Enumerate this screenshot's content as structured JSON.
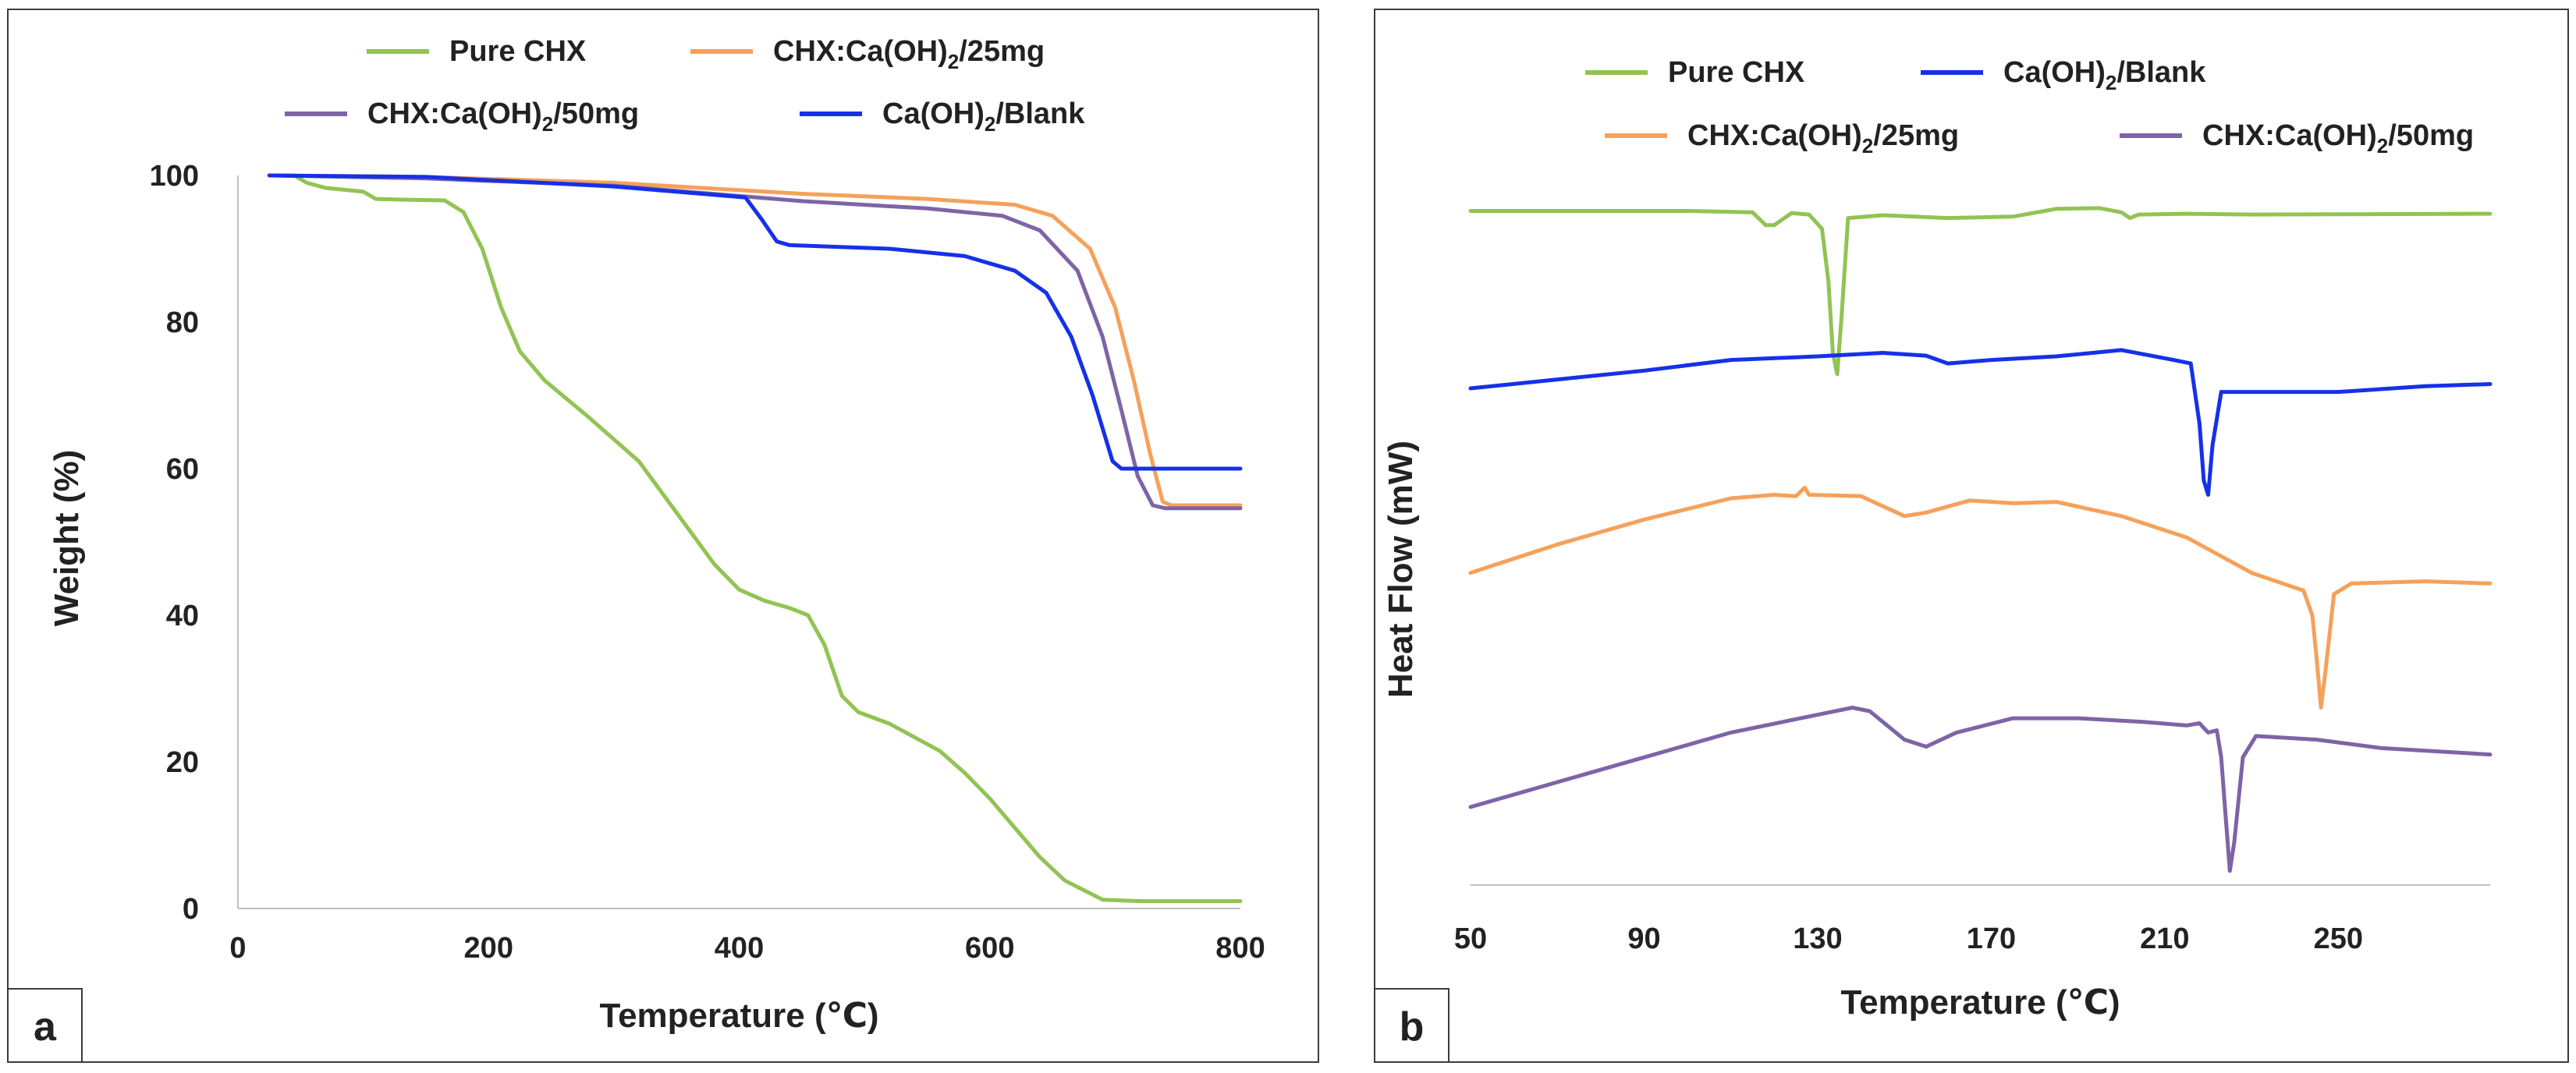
{
  "chart_data": [
    {
      "type": "line",
      "panel_label": "a",
      "title": "",
      "xlabel": "Temperature (℃)",
      "ylabel": "Weight (%)",
      "xlim": [
        0,
        800
      ],
      "ylim": [
        0,
        100
      ],
      "x_ticks": [
        0,
        200,
        400,
        600,
        800
      ],
      "y_ticks": [
        0,
        20,
        40,
        60,
        80,
        100
      ],
      "legend": "top",
      "series": [
        {
          "name": "Pure CHX",
          "label_base": "Pure CHX",
          "label_sub": "",
          "label_tail": "",
          "color": "#92C353",
          "points": [
            [
              30,
              100
            ],
            [
              45,
              100
            ],
            [
              55,
              99
            ],
            [
              70,
              98.3
            ],
            [
              100,
              97.8
            ],
            [
              110,
              96.8
            ],
            [
              130,
              96.7
            ],
            [
              165,
              96.6
            ],
            [
              180,
              95
            ],
            [
              195,
              90
            ],
            [
              210,
              82
            ],
            [
              225,
              76
            ],
            [
              245,
              72
            ],
            [
              280,
              67
            ],
            [
              320,
              61
            ],
            [
              350,
              54
            ],
            [
              380,
              47
            ],
            [
              400,
              43.5
            ],
            [
              420,
              42
            ],
            [
              440,
              41
            ],
            [
              455,
              40
            ],
            [
              468,
              36
            ],
            [
              482,
              29
            ],
            [
              495,
              26.8
            ],
            [
              520,
              25.2
            ],
            [
              560,
              21.5
            ],
            [
              580,
              18.5
            ],
            [
              600,
              15
            ],
            [
              620,
              11
            ],
            [
              640,
              7
            ],
            [
              660,
              3.8
            ],
            [
              690,
              1.2
            ],
            [
              720,
              1
            ],
            [
              800,
              1
            ]
          ]
        },
        {
          "name": "CHX:Ca(OH)2/25mg",
          "label_base": "CHX:Ca(OH)",
          "label_sub": "2",
          "label_tail": "/25mg",
          "color": "#F5A15A",
          "points": [
            [
              30,
              100
            ],
            [
              150,
              99.8
            ],
            [
              300,
              99
            ],
            [
              450,
              97.5
            ],
            [
              550,
              96.8
            ],
            [
              620,
              96
            ],
            [
              650,
              94.5
            ],
            [
              680,
              90
            ],
            [
              700,
              82
            ],
            [
              715,
              72
            ],
            [
              728,
              62
            ],
            [
              738,
              55.5
            ],
            [
              745,
              55
            ],
            [
              800,
              55
            ]
          ]
        },
        {
          "name": "CHX:Ca(OH)2/50mg",
          "label_base": "CHX:Ca(OH)",
          "label_sub": "2",
          "label_tail": "/50mg",
          "color": "#7E64A6",
          "points": [
            [
              30,
              100
            ],
            [
              150,
              99.6
            ],
            [
              300,
              98.6
            ],
            [
              450,
              96.5
            ],
            [
              550,
              95.5
            ],
            [
              610,
              94.5
            ],
            [
              640,
              92.5
            ],
            [
              670,
              87
            ],
            [
              690,
              78
            ],
            [
              705,
              68
            ],
            [
              718,
              59
            ],
            [
              730,
              55
            ],
            [
              740,
              54.6
            ],
            [
              800,
              54.6
            ]
          ]
        },
        {
          "name": "Ca(OH)2/Blank",
          "label_base": "Ca(OH)",
          "label_sub": "2",
          "label_tail": "/Blank",
          "color": "#1531E8",
          "points": [
            [
              25,
              100
            ],
            [
              150,
              99.8
            ],
            [
              300,
              98.5
            ],
            [
              405,
              97
            ],
            [
              418,
              94
            ],
            [
              430,
              91
            ],
            [
              440,
              90.5
            ],
            [
              520,
              90
            ],
            [
              580,
              89
            ],
            [
              620,
              87
            ],
            [
              645,
              84
            ],
            [
              665,
              78
            ],
            [
              682,
              70
            ],
            [
              698,
              61
            ],
            [
              705,
              60
            ],
            [
              800,
              60
            ]
          ]
        }
      ]
    },
    {
      "type": "line",
      "panel_label": "b",
      "title": "",
      "xlabel": "Temperature (℃)",
      "ylabel": "Heat Flow (mW)",
      "xlim": [
        50,
        285
      ],
      "ylim": [
        0,
        100
      ],
      "x_ticks": [
        50,
        90,
        130,
        170,
        210,
        250
      ],
      "y_ticks": [],
      "legend": "top",
      "series": [
        {
          "name": "Pure CHX",
          "label_base": "Pure CHX",
          "label_sub": "",
          "label_tail": "",
          "color": "#92C353",
          "points": [
            [
              50,
              95
            ],
            [
              100,
              95
            ],
            [
              115,
              94.8
            ],
            [
              118,
              93
            ],
            [
              120,
              93
            ],
            [
              124,
              94.7
            ],
            [
              128,
              94.5
            ],
            [
              131,
              92.5
            ],
            [
              132.5,
              85
            ],
            [
              133.5,
              75
            ],
            [
              134.5,
              72
            ],
            [
              135.5,
              80
            ],
            [
              137,
              94
            ],
            [
              145,
              94.4
            ],
            [
              160,
              94
            ],
            [
              175,
              94.2
            ],
            [
              185,
              95.3
            ],
            [
              195,
              95.4
            ],
            [
              200,
              94.8
            ],
            [
              202,
              94
            ],
            [
              204,
              94.5
            ],
            [
              215,
              94.6
            ],
            [
              230,
              94.5
            ],
            [
              285,
              94.6
            ]
          ]
        },
        {
          "name": "Ca(OH)2/Blank",
          "label_base": "Ca(OH)",
          "label_sub": "2",
          "label_tail": "/Blank",
          "color": "#1531E8",
          "points": [
            [
              50,
              70
            ],
            [
              90,
              72.5
            ],
            [
              110,
              74
            ],
            [
              130,
              74.5
            ],
            [
              145,
              75
            ],
            [
              155,
              74.6
            ],
            [
              160,
              73.5
            ],
            [
              170,
              74
            ],
            [
              185,
              74.5
            ],
            [
              200,
              75.4
            ],
            [
              212,
              74
            ],
            [
              216,
              73.5
            ],
            [
              218,
              65
            ],
            [
              219,
              57
            ],
            [
              220,
              55
            ],
            [
              221,
              62
            ],
            [
              223,
              69.5
            ],
            [
              235,
              69.5
            ],
            [
              250,
              69.5
            ],
            [
              270,
              70.3
            ],
            [
              285,
              70.6
            ]
          ]
        },
        {
          "name": "CHX:Ca(OH)2/25mg",
          "label_base": "CHX:Ca(OH)",
          "label_sub": "2",
          "label_tail": "/25mg",
          "color": "#F5A15A",
          "points": [
            [
              50,
              44
            ],
            [
              70,
              48
            ],
            [
              90,
              51.5
            ],
            [
              110,
              54.5
            ],
            [
              120,
              55
            ],
            [
              125,
              54.8
            ],
            [
              127,
              56
            ],
            [
              128,
              55
            ],
            [
              140,
              54.8
            ],
            [
              150,
              52
            ],
            [
              155,
              52.5
            ],
            [
              165,
              54.2
            ],
            [
              175,
              53.8
            ],
            [
              185,
              54
            ],
            [
              200,
              52
            ],
            [
              215,
              49
            ],
            [
              230,
              44
            ],
            [
              242,
              41.5
            ],
            [
              244,
              38
            ],
            [
              245,
              32
            ],
            [
              246,
              25
            ],
            [
              247,
              30
            ],
            [
              249,
              41
            ],
            [
              253,
              42.5
            ],
            [
              270,
              42.8
            ],
            [
              285,
              42.5
            ]
          ]
        },
        {
          "name": "CHX:Ca(OH)2/50mg",
          "label_base": "CHX:Ca(OH)",
          "label_sub": "2",
          "label_tail": "/50mg",
          "color": "#7E64A6",
          "points": [
            [
              50,
              11
            ],
            [
              70,
              14.5
            ],
            [
              90,
              18
            ],
            [
              110,
              21.5
            ],
            [
              130,
              24
            ],
            [
              138,
              25
            ],
            [
              142,
              24.5
            ],
            [
              150,
              20.5
            ],
            [
              155,
              19.5
            ],
            [
              162,
              21.5
            ],
            [
              175,
              23.5
            ],
            [
              190,
              23.5
            ],
            [
              205,
              23
            ],
            [
              215,
              22.5
            ],
            [
              218,
              22.8
            ],
            [
              220,
              21.5
            ],
            [
              222,
              21.8
            ],
            [
              223,
              18
            ],
            [
              224,
              10
            ],
            [
              225,
              2
            ],
            [
              226,
              6
            ],
            [
              228,
              18
            ],
            [
              231,
              21
            ],
            [
              245,
              20.5
            ],
            [
              260,
              19.3
            ],
            [
              285,
              18.4
            ]
          ]
        }
      ]
    }
  ]
}
